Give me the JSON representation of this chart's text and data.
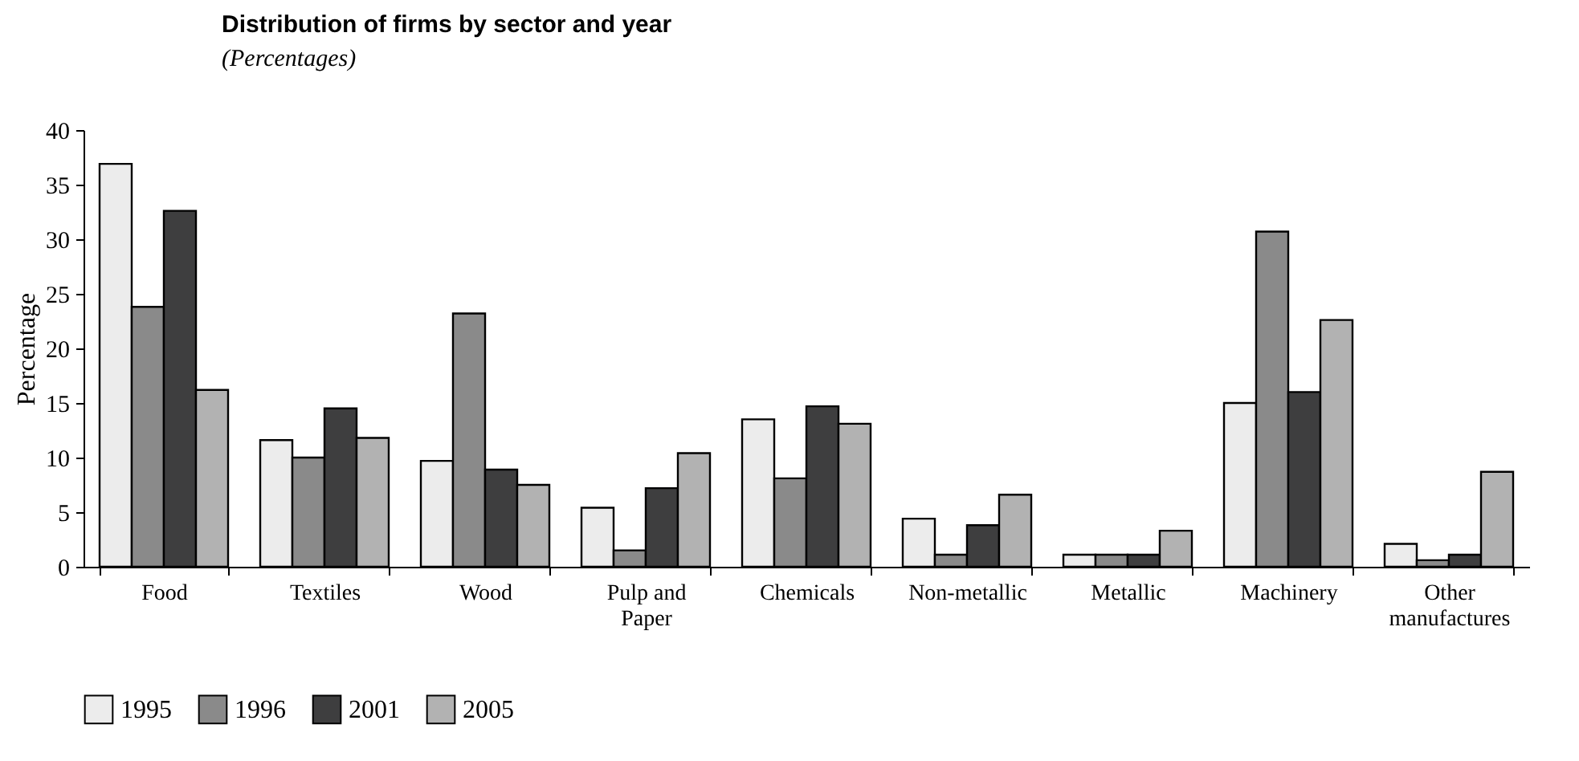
{
  "chart_data": {
    "type": "bar",
    "title": "Distribution of firms by sector and year",
    "subtitle": "(Percentages)",
    "ylabel": "Percentage",
    "categories": [
      "Food",
      "Textiles",
      "Wood",
      "Pulp and Paper",
      "Chemicals",
      "Non-metallic",
      "Metallic",
      "Machinery",
      "Other manufactures"
    ],
    "series": [
      {
        "name": "1995",
        "color": "#ececec",
        "values": [
          36.9,
          11.6,
          9.7,
          5.4,
          13.5,
          4.4,
          1.1,
          15.0,
          2.1
        ]
      },
      {
        "name": "1996",
        "color": "#8a8a8a",
        "values": [
          23.8,
          10.0,
          23.2,
          1.5,
          8.1,
          1.1,
          1.1,
          30.7,
          0.6
        ]
      },
      {
        "name": "2001",
        "color": "#3e3e3f",
        "values": [
          32.6,
          14.5,
          8.9,
          7.2,
          14.7,
          3.8,
          1.1,
          16.0,
          1.1
        ]
      },
      {
        "name": "2005",
        "color": "#b2b2b2",
        "values": [
          16.2,
          11.8,
          7.5,
          10.4,
          13.1,
          6.6,
          3.3,
          22.6,
          8.7
        ]
      }
    ],
    "ylim": [
      0,
      40
    ],
    "yticks": [
      0,
      5,
      10,
      15,
      20,
      25,
      30,
      35,
      40
    ],
    "grid": false,
    "legend": "bottom"
  }
}
